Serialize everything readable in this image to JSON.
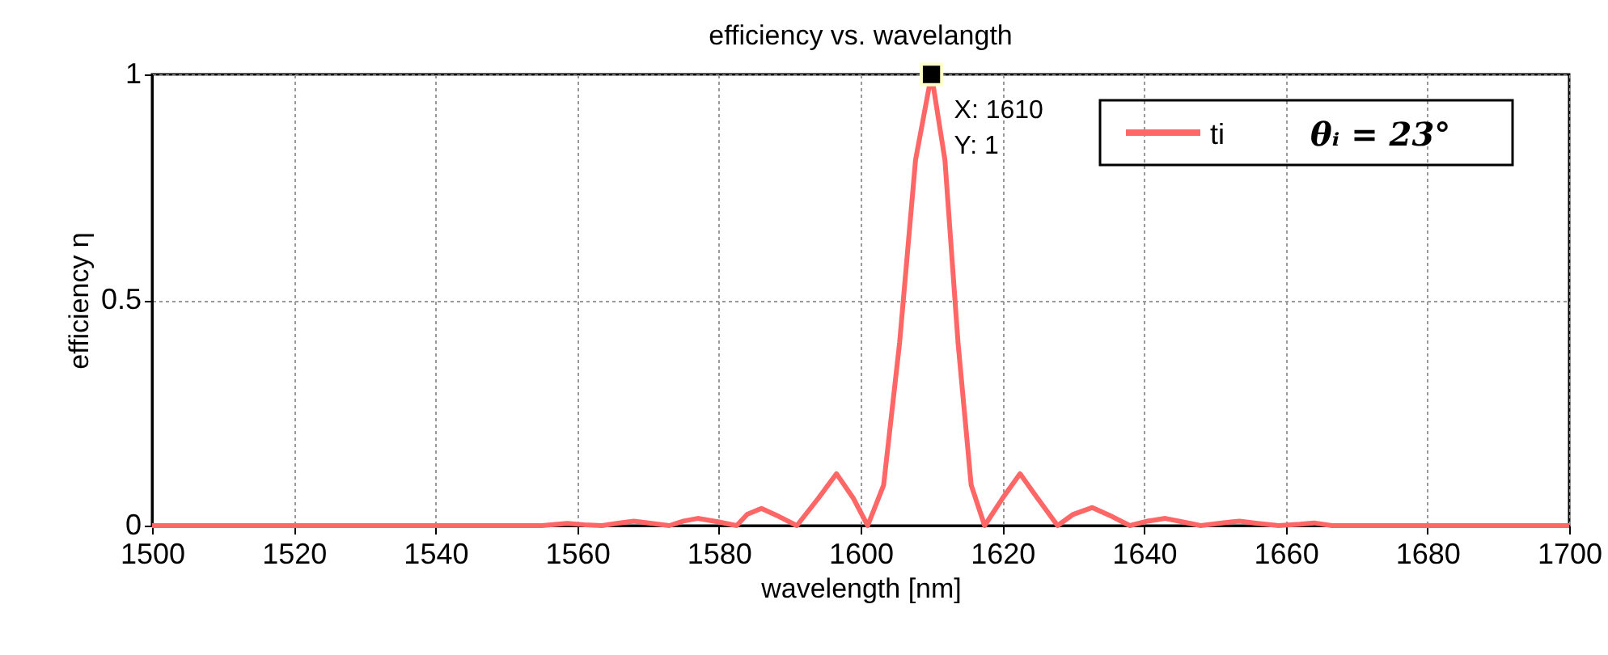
{
  "chart_data": {
    "type": "line",
    "title": "efficiency vs. wavelangth",
    "xlabel": "wavelength [nm]",
    "ylabel": "efficiency η",
    "xlim": [
      1500,
      1700
    ],
    "xticks": [
      1500,
      1520,
      1540,
      1560,
      1580,
      1600,
      1620,
      1640,
      1660,
      1680,
      1700
    ],
    "ylim": [
      0,
      1
    ],
    "yticks": [
      0,
      0.5,
      1
    ],
    "grid": true,
    "legend": "top right",
    "line_style": "solid",
    "marker": "none",
    "series": [
      {
        "name": "ti",
        "color": "#ff6666",
        "x": [
          1500,
          1555,
          1558.6,
          1561,
          1563.5,
          1566,
          1568,
          1570.5,
          1573,
          1575,
          1577,
          1580,
          1582.5,
          1584,
          1586,
          1588.5,
          1591,
          1594,
          1596.6,
          1599,
          1601,
          1603.25,
          1605.5,
          1607.75,
          1610,
          1611.9,
          1613.75,
          1615.6,
          1617.5,
          1620,
          1622.5,
          1625,
          1627.8,
          1630,
          1632.7,
          1635.5,
          1638,
          1640.5,
          1643,
          1645.5,
          1648,
          1651,
          1653.5,
          1656,
          1659,
          1662,
          1664,
          1666.5,
          1700
        ],
        "values": [
          0,
          0,
          0.005,
          0.002,
          0,
          0.006,
          0.01,
          0.005,
          0,
          0.01,
          0.016,
          0.008,
          0,
          0.025,
          0.038,
          0.02,
          0,
          0.06,
          0.115,
          0.06,
          0,
          0.09,
          0.405,
          0.81,
          1,
          0.81,
          0.405,
          0.09,
          0,
          0.06,
          0.115,
          0.06,
          0,
          0.025,
          0.04,
          0.02,
          0,
          0.01,
          0.016,
          0.008,
          0,
          0.006,
          0.01,
          0.005,
          0,
          0.003,
          0.006,
          0,
          0
        ]
      }
    ],
    "annotations": [
      {
        "text": "X: 1610\nY: 1",
        "x": 1610,
        "y": 1
      },
      "θᵢ = 23°"
    ]
  }
}
